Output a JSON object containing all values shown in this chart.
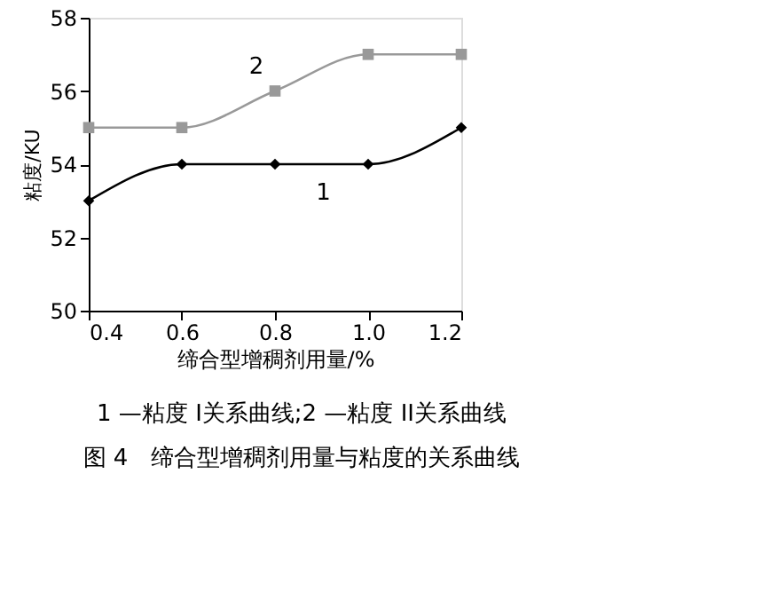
{
  "chart_data": {
    "type": "line",
    "title": "图 4　缔合型增稠剂用量与粘度的关系曲线",
    "xlabel": "缔合型增稠剂用量/%",
    "ylabel": "粘度/KU",
    "x": [
      0.4,
      0.6,
      0.8,
      1.0,
      1.2
    ],
    "series": [
      {
        "name": "1",
        "color": "#000000",
        "marker": "diamond",
        "values": [
          53,
          54,
          54,
          54,
          55
        ]
      },
      {
        "name": "2",
        "color": "#999999",
        "marker": "square",
        "values": [
          55,
          55,
          56,
          57,
          57
        ]
      }
    ],
    "xlim": [
      0.4,
      1.2
    ],
    "xticks": [
      {
        "value": 0.4,
        "label": "0.4"
      },
      {
        "value": 0.6,
        "label": "0.6"
      },
      {
        "value": 0.8,
        "label": "0.8"
      },
      {
        "value": 1.0,
        "label": "1.0"
      },
      {
        "value": 1.2,
        "label": "1.2"
      }
    ],
    "ylim": [
      50,
      58
    ],
    "yticks": [
      50,
      52,
      54,
      56,
      58
    ],
    "annotations": [
      "1 —粘度 I关系曲线;2 —粘度 II关系曲线"
    ],
    "grid": false,
    "line_style": "solid"
  }
}
